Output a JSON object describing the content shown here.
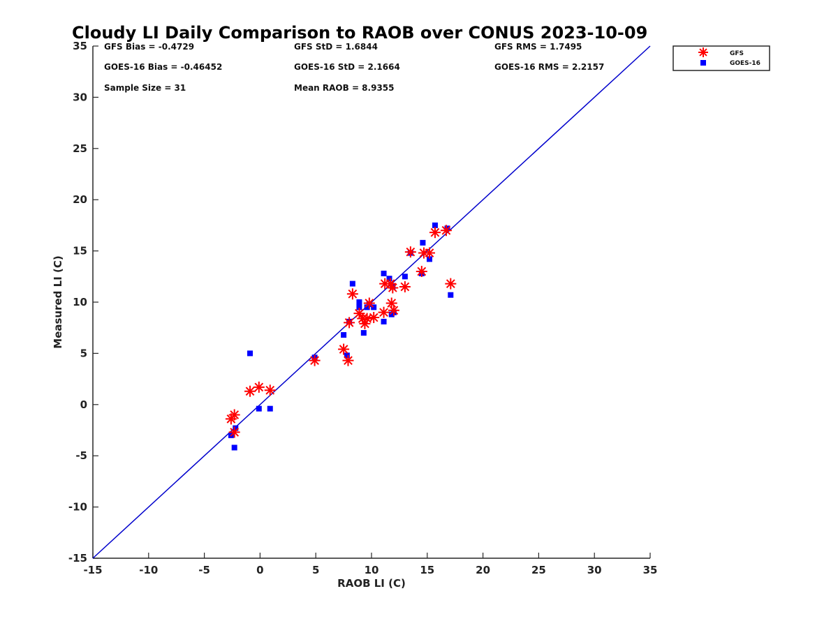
{
  "chart_data": {
    "type": "scatter",
    "title": "Cloudy LI Daily Comparison to RAOB over CONUS 2023-10-09",
    "xlabel": "RAOB LI (C)",
    "ylabel": "Measured LI (C)",
    "xlim": [
      -15,
      35
    ],
    "ylim": [
      -15,
      35
    ],
    "xticks": [
      -15,
      -10,
      -5,
      0,
      5,
      10,
      15,
      20,
      25,
      30,
      35
    ],
    "yticks": [
      -15,
      -10,
      -5,
      0,
      5,
      10,
      15,
      20,
      25,
      30,
      35
    ],
    "grid": false,
    "legend_position": "top-right outside",
    "reference_line": {
      "from": [
        -15,
        -15
      ],
      "to": [
        35,
        35
      ],
      "color": "#0000cc"
    },
    "stats": {
      "gfs_bias": "GFS Bias = -0.4729",
      "gfs_std": "GFS StD = 1.6844",
      "gfs_rms": "GFS RMS = 1.7495",
      "goes_bias": "GOES-16 Bias = -0.46452",
      "goes_std": "GOES-16 StD = 2.1664",
      "goes_rms": "GOES-16 RMS = 2.2157",
      "sample_size": "Sample Size = 31",
      "mean_raob": "Mean RAOB = 8.9355"
    },
    "series": [
      {
        "name": "GFS",
        "marker": "asterisk",
        "color": "#ff0000",
        "points": [
          [
            -2.6,
            -1.4
          ],
          [
            -2.3,
            -2.7
          ],
          [
            -2.3,
            -1.0
          ],
          [
            -0.9,
            1.3
          ],
          [
            -0.1,
            1.7
          ],
          [
            0.9,
            1.4
          ],
          [
            4.9,
            4.3
          ],
          [
            7.5,
            5.4
          ],
          [
            7.9,
            4.3
          ],
          [
            8.0,
            8.0
          ],
          [
            8.3,
            10.8
          ],
          [
            8.9,
            8.9
          ],
          [
            9.2,
            8.4
          ],
          [
            9.4,
            7.9
          ],
          [
            9.6,
            8.4
          ],
          [
            9.8,
            9.9
          ],
          [
            10.2,
            8.5
          ],
          [
            11.1,
            9.0
          ],
          [
            11.2,
            11.8
          ],
          [
            11.7,
            11.8
          ],
          [
            11.8,
            9.9
          ],
          [
            12.0,
            9.2
          ],
          [
            11.9,
            11.4
          ],
          [
            13.0,
            11.5
          ],
          [
            13.5,
            14.9
          ],
          [
            14.5,
            13.0
          ],
          [
            14.7,
            14.8
          ],
          [
            15.2,
            14.8
          ],
          [
            15.7,
            16.8
          ],
          [
            16.7,
            17.0
          ],
          [
            17.1,
            11.8
          ]
        ]
      },
      {
        "name": "GOES-16",
        "marker": "square",
        "color": "#0000ff",
        "points": [
          [
            -2.6,
            -3.0
          ],
          [
            -2.3,
            -4.2
          ],
          [
            -2.2,
            -2.3
          ],
          [
            -0.9,
            5.0
          ],
          [
            -0.1,
            -0.4
          ],
          [
            0.9,
            -0.4
          ],
          [
            4.9,
            4.6
          ],
          [
            7.5,
            6.8
          ],
          [
            7.8,
            4.8
          ],
          [
            8.0,
            8.1
          ],
          [
            8.3,
            11.8
          ],
          [
            8.9,
            9.5
          ],
          [
            8.9,
            10.0
          ],
          [
            9.3,
            7.0
          ],
          [
            9.6,
            9.5
          ],
          [
            9.8,
            9.8
          ],
          [
            10.2,
            9.5
          ],
          [
            11.1,
            8.1
          ],
          [
            11.1,
            12.8
          ],
          [
            11.6,
            12.3
          ],
          [
            11.8,
            8.8
          ],
          [
            12.0,
            9.0
          ],
          [
            11.9,
            11.5
          ],
          [
            13.0,
            12.5
          ],
          [
            13.5,
            14.8
          ],
          [
            14.5,
            12.8
          ],
          [
            14.6,
            15.8
          ],
          [
            15.2,
            14.2
          ],
          [
            15.7,
            17.5
          ],
          [
            16.8,
            17.2
          ],
          [
            17.1,
            10.7
          ]
        ]
      }
    ]
  }
}
